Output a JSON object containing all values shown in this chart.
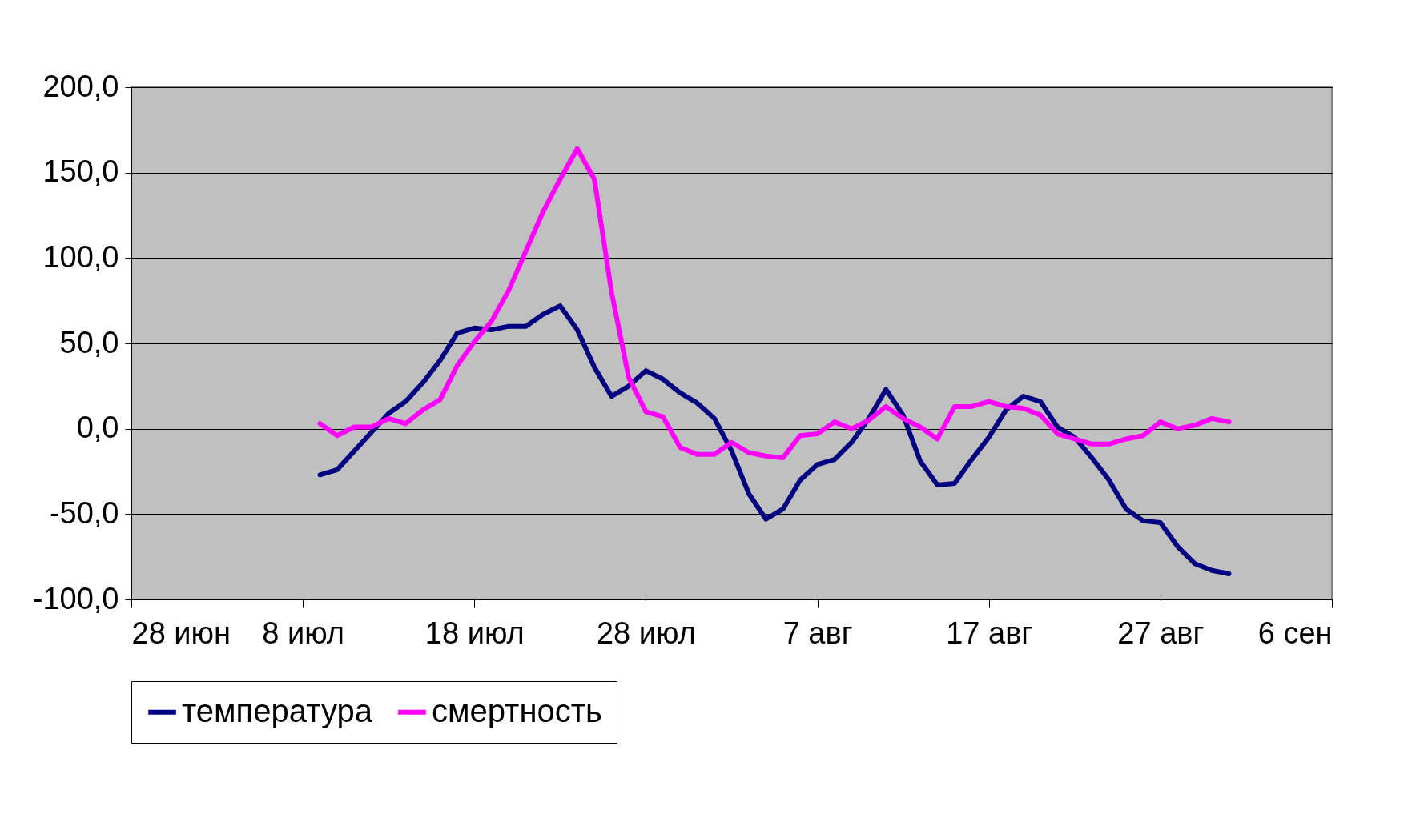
{
  "chart_data": {
    "type": "line",
    "x": [
      "--07-09",
      "--07-10",
      "--07-11",
      "--07-12",
      "--07-13",
      "--07-14",
      "--07-15",
      "--07-16",
      "--07-17",
      "--07-18",
      "--07-19",
      "--07-20",
      "--07-21",
      "--07-22",
      "--07-23",
      "--07-24",
      "--07-25",
      "--07-26",
      "--07-27",
      "--07-28",
      "--07-29",
      "--07-30",
      "--07-31",
      "--08-01",
      "--08-02",
      "--08-03",
      "--08-04",
      "--08-05",
      "--08-06",
      "--08-07",
      "--08-08",
      "--08-09",
      "--08-10",
      "--08-11",
      "--08-12",
      "--08-13",
      "--08-14",
      "--08-15",
      "--08-16",
      "--08-17",
      "--08-18",
      "--08-19",
      "--08-20",
      "--08-21",
      "--08-22",
      "--08-23",
      "--08-24",
      "--08-25",
      "--08-26",
      "--08-27",
      "--08-28",
      "--08-29",
      "--08-30",
      "--08-31"
    ],
    "series": [
      {
        "name": "температура",
        "color": "#000080",
        "values": [
          -27,
          -24,
          -13,
          -2,
          9,
          16,
          27,
          40,
          56,
          59,
          58,
          60,
          60,
          67,
          72,
          58,
          36,
          19,
          25,
          34,
          29,
          21,
          15,
          6,
          -13,
          -38,
          -53,
          -47,
          -30,
          -21,
          -18,
          -8,
          6,
          23,
          8,
          -19,
          -33,
          -32,
          -18,
          -5,
          11,
          19,
          16,
          1,
          -5,
          -17,
          -30,
          -47,
          -54,
          -55,
          -69,
          -79,
          -83,
          -85
        ]
      },
      {
        "name": "смертность",
        "color": "#ff00ff",
        "values": [
          3,
          -4,
          1,
          1,
          6,
          3,
          11,
          17,
          37,
          51,
          63,
          81,
          104,
          127,
          146,
          164,
          146,
          80,
          30,
          10,
          7,
          -11,
          -15,
          -15,
          -8,
          -14,
          -16,
          -17,
          -4,
          -3,
          4,
          0,
          5,
          13,
          6,
          1,
          -6,
          13,
          13,
          16,
          13,
          12,
          8,
          -3,
          -6,
          -9,
          -9,
          -6,
          -4,
          4,
          0,
          2,
          6,
          4
        ]
      }
    ],
    "xlim": [
      "--06-28",
      "--09-06"
    ],
    "xticks": [
      {
        "value": "--06-28",
        "label": "28 июн"
      },
      {
        "value": "--07-08",
        "label": "8 июл"
      },
      {
        "value": "--07-18",
        "label": "18 июл"
      },
      {
        "value": "--07-28",
        "label": "28 июл"
      },
      {
        "value": "--08-07",
        "label": "7 авг"
      },
      {
        "value": "--08-17",
        "label": "17 авг"
      },
      {
        "value": "--08-27",
        "label": "27 авг"
      },
      {
        "value": "--09-06",
        "label": "6 сен"
      }
    ],
    "ylim": [
      -100,
      200
    ],
    "yticks": [
      {
        "value": -100,
        "label": "-100,0"
      },
      {
        "value": -50,
        "label": "-50,0"
      },
      {
        "value": 0,
        "label": "0,0"
      },
      {
        "value": 50,
        "label": "50,0"
      },
      {
        "value": 100,
        "label": "100,0"
      },
      {
        "value": 150,
        "label": "150,0"
      },
      {
        "value": 200,
        "label": "200,0"
      }
    ],
    "grid": "y",
    "legend": "bottom",
    "marker": "none",
    "line_style": "solid"
  }
}
